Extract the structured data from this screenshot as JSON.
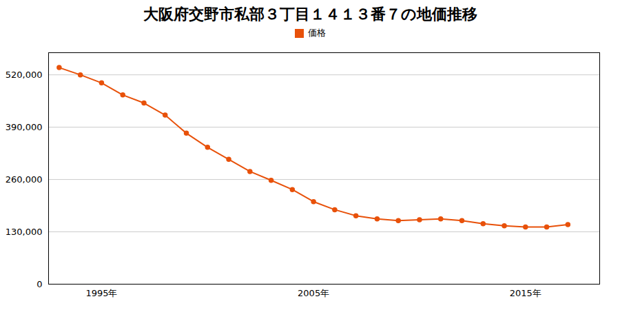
{
  "chart_data": {
    "type": "line",
    "title": "大阪府交野市私部３丁目１４１３番７の地価推移",
    "x": [
      1993,
      1994,
      1995,
      1996,
      1997,
      1998,
      1999,
      2000,
      2001,
      2002,
      2003,
      2004,
      2005,
      2006,
      2007,
      2008,
      2009,
      2010,
      2011,
      2012,
      2013,
      2014,
      2015,
      2016,
      2017
    ],
    "series": [
      {
        "name": "価格",
        "color": "#E8510A",
        "marker": "circle",
        "values": [
          538000,
          520000,
          500000,
          470000,
          450000,
          420000,
          375000,
          340000,
          310000,
          280000,
          258000,
          235000,
          205000,
          185000,
          170000,
          162000,
          158000,
          160000,
          162000,
          158000,
          150000,
          145000,
          142000,
          142000,
          148000
        ]
      }
    ],
    "xlim": [
      1992.5,
      2018.5
    ],
    "xticks": [
      {
        "value": 1995,
        "label": "1995年"
      },
      {
        "value": 2005,
        "label": "2005年"
      },
      {
        "value": 2015,
        "label": "2015年"
      }
    ],
    "ylim": [
      0,
      575000
    ],
    "yticks": [
      0,
      {
        "value": 130000,
        "label": "130,000"
      },
      {
        "value": 260000,
        "label": "260,000"
      },
      {
        "value": 390000,
        "label": "390,000"
      },
      {
        "value": 520000,
        "label": "520,000"
      }
    ],
    "grid": "y",
    "legend": "top"
  }
}
